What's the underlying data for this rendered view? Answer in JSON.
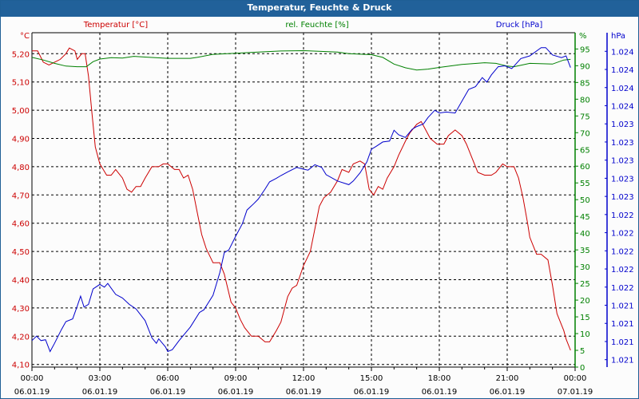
{
  "window": {
    "title": "Temperatur, Feuchte & Druck"
  },
  "colors": {
    "temperature": "#cc0000",
    "humidity": "#008000",
    "pressure": "#0000cc",
    "titlebar": "#21619a"
  },
  "chart_data": {
    "type": "line",
    "title": "Temperatur, Feuchte & Druck",
    "x_unit": "hours since 06.01.19 00:00",
    "xlim": [
      0,
      24
    ],
    "x_ticks": [
      {
        "time": "00:00",
        "date": "06.01.19"
      },
      {
        "time": "03:00",
        "date": "06.01.19"
      },
      {
        "time": "06:00",
        "date": "06.01.19"
      },
      {
        "time": "09:00",
        "date": "06.01.19"
      },
      {
        "time": "12:00",
        "date": "06.01.19"
      },
      {
        "time": "15:00",
        "date": "06.01.19"
      },
      {
        "time": "18:00",
        "date": "06.01.19"
      },
      {
        "time": "21:00",
        "date": "06.01.19"
      },
      {
        "time": "00:00",
        "date": "07.01.19"
      }
    ],
    "grid": true,
    "axes": {
      "temperature": {
        "legend": "Temperatur [°C]",
        "unit": "°C",
        "ticks": [
          "5,20",
          "5,10",
          "5,00",
          "4,90",
          "4,80",
          "4,70",
          "4,60",
          "4,50",
          "4,40",
          "4,30",
          "4,20",
          "4,10"
        ],
        "tick_values": [
          5.2,
          5.1,
          5.0,
          4.9,
          4.8,
          4.7,
          4.6,
          4.5,
          4.4,
          4.3,
          4.2,
          4.1
        ]
      },
      "humidity": {
        "legend": "rel. Feuchte [%]",
        "unit": "%",
        "ticks": [
          "95",
          "90",
          "85",
          "80",
          "75",
          "70",
          "65",
          "60",
          "55",
          "50",
          "45",
          "40",
          "35",
          "30",
          "25",
          "20",
          "15",
          "10",
          "5",
          "0"
        ],
        "tick_values": [
          95,
          90,
          85,
          80,
          75,
          70,
          65,
          60,
          55,
          50,
          45,
          40,
          35,
          30,
          25,
          20,
          15,
          10,
          5,
          0
        ]
      },
      "pressure": {
        "legend": "Druck [hPa]",
        "unit": "hPa",
        "ticks": [
          "1.024",
          "1.024",
          "1.024",
          "1.024",
          "1.023",
          "1.023",
          "1.023",
          "1.023",
          "1.023",
          "1.022",
          "1.022",
          "1.022",
          "1.022",
          "1.022",
          "1.021",
          "1.021",
          "1.021",
          "1.021"
        ],
        "tick_values": [
          1024.3,
          1024.1,
          1023.9,
          1023.7,
          1023.5,
          1023.3,
          1023.1,
          1022.9,
          1022.7,
          1022.5,
          1022.3,
          1022.1,
          1021.9,
          1021.7,
          1021.5,
          1021.3,
          1021.1,
          1020.9
        ]
      }
    },
    "series": [
      {
        "name": "Temperatur [°C]",
        "axis": "temperature",
        "points": [
          [
            0,
            5.21
          ],
          [
            0.25,
            5.21
          ],
          [
            0.5,
            5.17
          ],
          [
            0.75,
            5.16
          ],
          [
            1,
            5.17
          ],
          [
            1.25,
            5.18
          ],
          [
            1.5,
            5.2
          ],
          [
            1.65,
            5.22
          ],
          [
            1.9,
            5.21
          ],
          [
            2,
            5.18
          ],
          [
            2.2,
            5.2
          ],
          [
            2.35,
            5.2
          ],
          [
            2.5,
            5.12
          ],
          [
            2.65,
            4.99
          ],
          [
            2.8,
            4.87
          ],
          [
            3,
            4.81
          ],
          [
            3.3,
            4.77
          ],
          [
            3.5,
            4.77
          ],
          [
            3.7,
            4.79
          ],
          [
            4,
            4.76
          ],
          [
            4.2,
            4.72
          ],
          [
            4.4,
            4.71
          ],
          [
            4.6,
            4.73
          ],
          [
            4.8,
            4.73
          ],
          [
            5,
            4.76
          ],
          [
            5.3,
            4.8
          ],
          [
            5.6,
            4.8
          ],
          [
            5.8,
            4.81
          ],
          [
            6,
            4.81
          ],
          [
            6.3,
            4.79
          ],
          [
            6.5,
            4.79
          ],
          [
            6.7,
            4.76
          ],
          [
            6.9,
            4.77
          ],
          [
            7.1,
            4.72
          ],
          [
            7.3,
            4.64
          ],
          [
            7.5,
            4.56
          ],
          [
            7.7,
            4.51
          ],
          [
            8,
            4.46
          ],
          [
            8.3,
            4.46
          ],
          [
            8.5,
            4.42
          ],
          [
            8.8,
            4.32
          ],
          [
            9,
            4.3
          ],
          [
            9.2,
            4.26
          ],
          [
            9.4,
            4.23
          ],
          [
            9.7,
            4.2
          ],
          [
            10,
            4.2
          ],
          [
            10.3,
            4.18
          ],
          [
            10.5,
            4.18
          ],
          [
            10.8,
            4.22
          ],
          [
            11,
            4.25
          ],
          [
            11.3,
            4.34
          ],
          [
            11.5,
            4.37
          ],
          [
            11.7,
            4.38
          ],
          [
            12,
            4.45
          ],
          [
            12.3,
            4.5
          ],
          [
            12.5,
            4.58
          ],
          [
            12.7,
            4.66
          ],
          [
            12.9,
            4.69
          ],
          [
            13.2,
            4.71
          ],
          [
            13.5,
            4.75
          ],
          [
            13.7,
            4.79
          ],
          [
            14,
            4.78
          ],
          [
            14.2,
            4.81
          ],
          [
            14.5,
            4.82
          ],
          [
            14.7,
            4.81
          ],
          [
            14.9,
            4.72
          ],
          [
            15.1,
            4.7
          ],
          [
            15.3,
            4.73
          ],
          [
            15.5,
            4.72
          ],
          [
            15.7,
            4.76
          ],
          [
            16,
            4.8
          ],
          [
            16.2,
            4.84
          ],
          [
            16.5,
            4.89
          ],
          [
            16.7,
            4.92
          ],
          [
            17,
            4.95
          ],
          [
            17.2,
            4.96
          ],
          [
            17.4,
            4.93
          ],
          [
            17.6,
            4.9
          ],
          [
            17.9,
            4.88
          ],
          [
            18.1,
            4.88
          ],
          [
            18.2,
            4.88
          ],
          [
            18.4,
            4.91
          ],
          [
            18.7,
            4.93
          ],
          [
            19,
            4.91
          ],
          [
            19.2,
            4.88
          ],
          [
            19.5,
            4.82
          ],
          [
            19.7,
            4.78
          ],
          [
            20,
            4.77
          ],
          [
            20.3,
            4.77
          ],
          [
            20.5,
            4.78
          ],
          [
            20.8,
            4.81
          ],
          [
            21,
            4.8
          ],
          [
            21.3,
            4.8
          ],
          [
            21.5,
            4.76
          ],
          [
            21.7,
            4.69
          ],
          [
            21.9,
            4.6
          ],
          [
            22,
            4.55
          ],
          [
            22.3,
            4.49
          ],
          [
            22.5,
            4.49
          ],
          [
            22.8,
            4.47
          ],
          [
            23,
            4.38
          ],
          [
            23.2,
            4.28
          ],
          [
            23.5,
            4.22
          ],
          [
            23.6,
            4.19
          ],
          [
            23.8,
            4.15
          ]
        ]
      },
      {
        "name": "rel. Feuchte [%]",
        "axis": "humidity",
        "points": [
          [
            0,
            92.5
          ],
          [
            0.5,
            91.7
          ],
          [
            1,
            90.7
          ],
          [
            1.5,
            89.9
          ],
          [
            2,
            89.7
          ],
          [
            2.4,
            89.7
          ],
          [
            2.7,
            91.2
          ],
          [
            3,
            92.0
          ],
          [
            3.5,
            92.4
          ],
          [
            4,
            92.3
          ],
          [
            4.5,
            92.8
          ],
          [
            5,
            92.6
          ],
          [
            6,
            92.2
          ],
          [
            7,
            92.2
          ],
          [
            7.3,
            92.5
          ],
          [
            8,
            93.4
          ],
          [
            9,
            93.7
          ],
          [
            10,
            94.1
          ],
          [
            11,
            94.4
          ],
          [
            12,
            94.5
          ],
          [
            13.5,
            94.1
          ],
          [
            14,
            93.6
          ],
          [
            15,
            93.3
          ],
          [
            15.5,
            92.5
          ],
          [
            16,
            90.5
          ],
          [
            16.5,
            89.4
          ],
          [
            17,
            88.7
          ],
          [
            17.5,
            89.0
          ],
          [
            18,
            89.5
          ],
          [
            19,
            90.4
          ],
          [
            20,
            90.9
          ],
          [
            20.5,
            90.7
          ],
          [
            21,
            89.9
          ],
          [
            21.3,
            89.7
          ],
          [
            22,
            90.7
          ],
          [
            23,
            90.5
          ],
          [
            23.5,
            91.7
          ],
          [
            23.8,
            91.9
          ]
        ]
      },
      {
        "name": "Druck [hPa]",
        "axis": "pressure",
        "points": [
          [
            0,
            1021.11
          ],
          [
            0.2,
            1021.16
          ],
          [
            0.4,
            1021.11
          ],
          [
            0.6,
            1021.12
          ],
          [
            0.8,
            1020.99
          ],
          [
            1,
            1021.08
          ],
          [
            1.3,
            1021.23
          ],
          [
            1.5,
            1021.32
          ],
          [
            1.8,
            1021.35
          ],
          [
            2,
            1021.49
          ],
          [
            2.15,
            1021.6
          ],
          [
            2.3,
            1021.48
          ],
          [
            2.5,
            1021.51
          ],
          [
            2.7,
            1021.68
          ],
          [
            3,
            1021.73
          ],
          [
            3.2,
            1021.7
          ],
          [
            3.35,
            1021.74
          ],
          [
            3.7,
            1021.62
          ],
          [
            4,
            1021.58
          ],
          [
            4.3,
            1021.51
          ],
          [
            4.6,
            1021.46
          ],
          [
            5,
            1021.33
          ],
          [
            5.3,
            1021.14
          ],
          [
            5.5,
            1021.08
          ],
          [
            5.6,
            1021.13
          ],
          [
            5.9,
            1021.04
          ],
          [
            6,
            1020.99
          ],
          [
            6.2,
            1021.01
          ],
          [
            6.5,
            1021.11
          ],
          [
            7,
            1021.26
          ],
          [
            7.4,
            1021.42
          ],
          [
            7.6,
            1021.45
          ],
          [
            8,
            1021.61
          ],
          [
            8.3,
            1021.86
          ],
          [
            8.5,
            1022.08
          ],
          [
            8.7,
            1022.11
          ],
          [
            9,
            1022.26
          ],
          [
            9.3,
            1022.4
          ],
          [
            9.5,
            1022.55
          ],
          [
            9.8,
            1022.62
          ],
          [
            10,
            1022.67
          ],
          [
            10.3,
            1022.78
          ],
          [
            10.5,
            1022.86
          ],
          [
            10.8,
            1022.9
          ],
          [
            11,
            1022.93
          ],
          [
            11.3,
            1022.97
          ],
          [
            11.7,
            1023.02
          ],
          [
            12,
            1023.0
          ],
          [
            12.2,
            1022.99
          ],
          [
            12.5,
            1023.05
          ],
          [
            12.8,
            1023.02
          ],
          [
            13,
            1022.94
          ],
          [
            13.5,
            1022.87
          ],
          [
            14,
            1022.83
          ],
          [
            14.2,
            1022.87
          ],
          [
            14.5,
            1022.96
          ],
          [
            14.8,
            1023.08
          ],
          [
            15,
            1023.22
          ],
          [
            15.2,
            1023.25
          ],
          [
            15.5,
            1023.3
          ],
          [
            15.8,
            1023.31
          ],
          [
            16,
            1023.43
          ],
          [
            16.2,
            1023.38
          ],
          [
            16.5,
            1023.35
          ],
          [
            16.8,
            1023.44
          ],
          [
            17,
            1023.47
          ],
          [
            17.3,
            1023.5
          ],
          [
            17.5,
            1023.57
          ],
          [
            17.8,
            1023.65
          ],
          [
            18,
            1023.62
          ],
          [
            18.3,
            1023.63
          ],
          [
            18.7,
            1023.62
          ],
          [
            19,
            1023.75
          ],
          [
            19.3,
            1023.88
          ],
          [
            19.6,
            1023.91
          ],
          [
            19.9,
            1024.01
          ],
          [
            20.1,
            1023.96
          ],
          [
            20.3,
            1024.04
          ],
          [
            20.6,
            1024.13
          ],
          [
            20.9,
            1024.14
          ],
          [
            21.2,
            1024.11
          ],
          [
            21.6,
            1024.22
          ],
          [
            22,
            1024.25
          ],
          [
            22.5,
            1024.34
          ],
          [
            22.7,
            1024.34
          ],
          [
            23,
            1024.26
          ],
          [
            23.4,
            1024.23
          ],
          [
            23.6,
            1024.25
          ],
          [
            23.8,
            1024.12
          ]
        ]
      }
    ]
  }
}
